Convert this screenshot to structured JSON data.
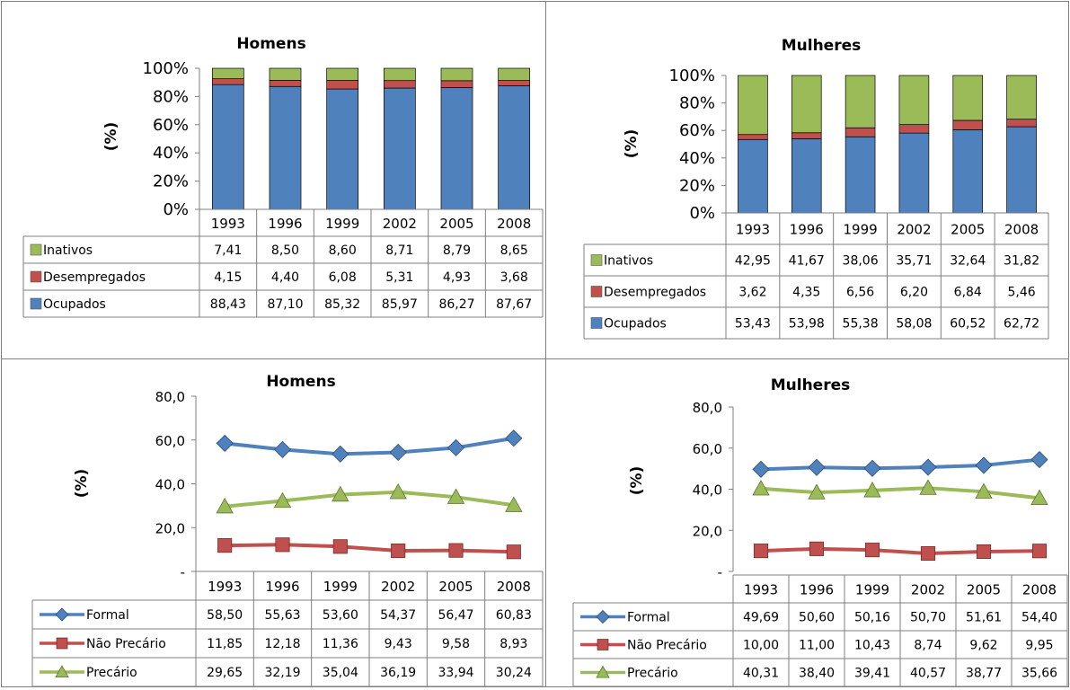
{
  "charts": [
    {
      "type": "stacked-bar",
      "title": "Homens",
      "ylabel": "(%)",
      "categories": [
        "1993",
        "1996",
        "1999",
        "2002",
        "2005",
        "2008"
      ],
      "yticks": [
        "0%",
        "20%",
        "40%",
        "60%",
        "80%",
        "100%"
      ],
      "ylim": [
        0,
        100
      ],
      "series": [
        {
          "name": "Inativos",
          "color": "#9bbb59",
          "values": [
            "7,41",
            "8,50",
            "8,60",
            "8,71",
            "8,79",
            "8,65"
          ]
        },
        {
          "name": "Desempregados",
          "color": "#c0504d",
          "values": [
            "4,15",
            "4,40",
            "6,08",
            "5,31",
            "4,93",
            "3,68"
          ]
        },
        {
          "name": "Ocupados",
          "color": "#4f81bd",
          "values": [
            "88,43",
            "87,10",
            "85,32",
            "85,97",
            "86,27",
            "87,67"
          ]
        }
      ]
    },
    {
      "type": "stacked-bar",
      "title": "Mulheres",
      "ylabel": "(%)",
      "categories": [
        "1993",
        "1996",
        "1999",
        "2002",
        "2005",
        "2008"
      ],
      "yticks": [
        "0%",
        "20%",
        "40%",
        "60%",
        "80%",
        "100%"
      ],
      "ylim": [
        0,
        100
      ],
      "series": [
        {
          "name": "Inativos",
          "color": "#9bbb59",
          "values": [
            "42,95",
            "41,67",
            "38,06",
            "35,71",
            "32,64",
            "31,82"
          ]
        },
        {
          "name": "Desempregados",
          "color": "#c0504d",
          "values": [
            "3,62",
            "4,35",
            "6,56",
            "6,20",
            "6,84",
            "5,46"
          ]
        },
        {
          "name": "Ocupados",
          "color": "#4f81bd",
          "values": [
            "53,43",
            "53,98",
            "55,38",
            "58,08",
            "60,52",
            "62,72"
          ]
        }
      ]
    },
    {
      "type": "line",
      "title": "Homens",
      "ylabel": "(%)",
      "categories": [
        "1993",
        "1996",
        "1999",
        "2002",
        "2005",
        "2008"
      ],
      "yticks": [
        "-",
        "20,0",
        "40,0",
        "60,0",
        "80,0"
      ],
      "ylim": [
        0,
        80
      ],
      "series": [
        {
          "name": "Formal",
          "color": "#4f81bd",
          "marker": "diamond",
          "values": [
            "58,50",
            "55,63",
            "53,60",
            "54,37",
            "56,47",
            "60,83"
          ]
        },
        {
          "name": "Não Precário",
          "color": "#c0504d",
          "marker": "square",
          "values": [
            "11,85",
            "12,18",
            "11,36",
            "9,43",
            "9,58",
            "8,93"
          ]
        },
        {
          "name": "Precário",
          "color": "#9bbb59",
          "marker": "triangle",
          "values": [
            "29,65",
            "32,19",
            "35,04",
            "36,19",
            "33,94",
            "30,24"
          ]
        }
      ]
    },
    {
      "type": "line",
      "title": "Mulheres",
      "ylabel": "(%)",
      "categories": [
        "1993",
        "1996",
        "1999",
        "2002",
        "2005",
        "2008"
      ],
      "yticks": [
        "-",
        "20,0",
        "40,0",
        "60,0",
        "80,0"
      ],
      "ylim": [
        0,
        80
      ],
      "series": [
        {
          "name": "Formal",
          "color": "#4f81bd",
          "marker": "diamond",
          "values": [
            "49,69",
            "50,60",
            "50,16",
            "50,70",
            "51,61",
            "54,40"
          ]
        },
        {
          "name": "Não Precário",
          "color": "#c0504d",
          "marker": "square",
          "values": [
            "10,00",
            "11,00",
            "10,43",
            "8,74",
            "9,62",
            "9,95"
          ]
        },
        {
          "name": "Precário",
          "color": "#9bbb59",
          "marker": "triangle",
          "values": [
            "40,31",
            "38,40",
            "39,41",
            "40,57",
            "38,77",
            "35,66"
          ]
        }
      ]
    }
  ]
}
